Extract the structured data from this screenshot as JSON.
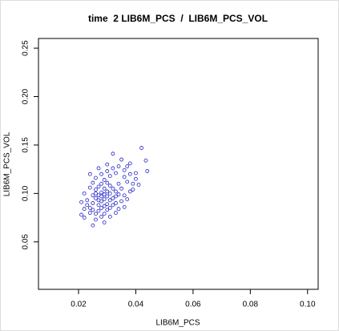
{
  "chart_data": {
    "type": "scatter",
    "title": "time  2 LIB6M_PCS  /  LIB6M_PCS_VOL",
    "x_label": "LIB6M_PCS",
    "y_label": "LIB6M_PCS_VOL",
    "color": "#2020c8",
    "xlim": [
      0.006,
      0.1037
    ],
    "ylim": [
      0.001,
      0.26
    ],
    "xticks": [
      0.02,
      0.04,
      0.06,
      0.08,
      {
        "value": 0.1,
        "label": "0.10"
      }
    ],
    "yticks": [
      0.05,
      {
        "value": 0.1,
        "label": "0.10"
      },
      0.15,
      {
        "value": 0.2,
        "label": "0.20"
      },
      0.25
    ],
    "x": [
      0.042,
      0.0435,
      0.044,
      0.04,
      0.041,
      0.032,
      0.038,
      0.035,
      0.025,
      0.022,
      0.021,
      0.029,
      0.033,
      0.036,
      0.037,
      0.024,
      0.027,
      0.03,
      0.022,
      0.021,
      0.026,
      0.027,
      0.028,
      0.029,
      0.03,
      0.031,
      0.028,
      0.029,
      0.03,
      0.027,
      0.025,
      0.026,
      0.031,
      0.032,
      0.033,
      0.034,
      0.035,
      0.024,
      0.023,
      0.025,
      0.028,
      0.029,
      0.031,
      0.033,
      0.036,
      0.037,
      0.034,
      0.032,
      0.03,
      0.027,
      0.026,
      0.024,
      0.023,
      0.022,
      0.024,
      0.025,
      0.026,
      0.028,
      0.03,
      0.032,
      0.034,
      0.036,
      0.038,
      0.039,
      0.038,
      0.036,
      0.035,
      0.033,
      0.031,
      0.029,
      0.028,
      0.026,
      0.031,
      0.034,
      0.039,
      0.04,
      0.037,
      0.029,
      0.03,
      0.028,
      0.027,
      0.031,
      0.032,
      0.03,
      0.027,
      0.026,
      0.029,
      0.033,
      0.028,
      0.025
    ],
    "values": [
      0.147,
      0.134,
      0.123,
      0.115,
      0.109,
      0.141,
      0.131,
      0.135,
      0.067,
      0.075,
      0.078,
      0.07,
      0.08,
      0.086,
      0.094,
      0.12,
      0.126,
      0.13,
      0.1,
      0.091,
      0.095,
      0.098,
      0.101,
      0.094,
      0.097,
      0.1,
      0.092,
      0.105,
      0.089,
      0.088,
      0.09,
      0.104,
      0.108,
      0.095,
      0.102,
      0.11,
      0.105,
      0.085,
      0.088,
      0.098,
      0.11,
      0.114,
      0.118,
      0.121,
      0.117,
      0.112,
      0.099,
      0.088,
      0.083,
      0.082,
      0.079,
      0.08,
      0.093,
      0.084,
      0.106,
      0.111,
      0.116,
      0.12,
      0.123,
      0.126,
      0.128,
      0.124,
      0.12,
      0.11,
      0.102,
      0.098,
      0.092,
      0.09,
      0.085,
      0.079,
      0.076,
      0.073,
      0.076,
      0.084,
      0.104,
      0.121,
      0.128,
      0.099,
      0.102,
      0.097,
      0.093,
      0.093,
      0.105,
      0.111,
      0.107,
      0.1,
      0.087,
      0.097,
      0.085,
      0.083
    ]
  }
}
